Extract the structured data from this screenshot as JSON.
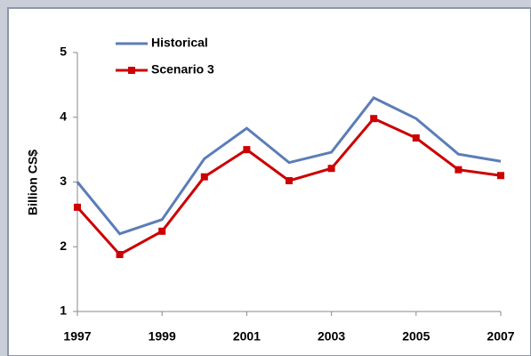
{
  "chart_data": {
    "type": "line",
    "y_label": "Billion CS$",
    "x": [
      1997,
      1998,
      1999,
      2000,
      2001,
      2002,
      2003,
      2004,
      2005,
      2006,
      2007
    ],
    "series": [
      {
        "name": "Historical",
        "color": "#5b7db8",
        "marker": "none",
        "values": [
          3.0,
          2.2,
          2.42,
          3.36,
          3.83,
          3.3,
          3.46,
          4.3,
          3.98,
          3.43,
          3.32
        ]
      },
      {
        "name": "Scenario 3",
        "color": "#cc0000",
        "marker": "square",
        "values": [
          2.61,
          1.88,
          2.24,
          3.08,
          3.5,
          3.02,
          3.21,
          3.98,
          3.68,
          3.19,
          3.1
        ]
      }
    ],
    "xlim": [
      1997,
      2007
    ],
    "xticks": [
      1997,
      1999,
      2001,
      2003,
      2005,
      2007
    ],
    "ylim": [
      1,
      5
    ],
    "yticks": [
      1,
      2,
      3,
      4,
      5
    ],
    "grid": false,
    "legend": "upper-left"
  }
}
